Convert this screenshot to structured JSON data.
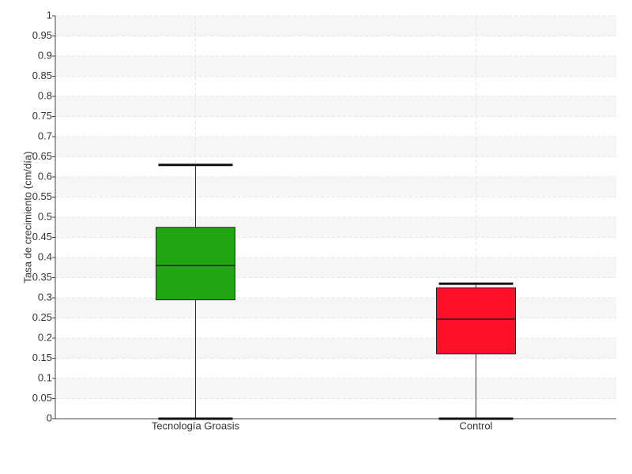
{
  "chart_data": {
    "type": "box",
    "y_label": "Tasa de crecimiento (cm/día)",
    "categories": [
      "Tecnología Groasis",
      "Control"
    ],
    "boxes": [
      {
        "min": 0,
        "q1": 0.295,
        "median": 0.38,
        "q3": 0.475,
        "max": 0.63,
        "color": "#22a512"
      },
      {
        "min": 0,
        "q1": 0.161,
        "median": 0.247,
        "q3": 0.325,
        "max": 0.335,
        "color": "#ff1028"
      }
    ],
    "ylim": [
      0,
      1
    ],
    "yticks": [
      0,
      0.05,
      0.1,
      0.15,
      0.2,
      0.25,
      0.3,
      0.35,
      0.4,
      0.45,
      0.5,
      0.55,
      0.6,
      0.65,
      0.7,
      0.75,
      0.8,
      0.85,
      0.9,
      0.95,
      1
    ],
    "grid": true
  }
}
